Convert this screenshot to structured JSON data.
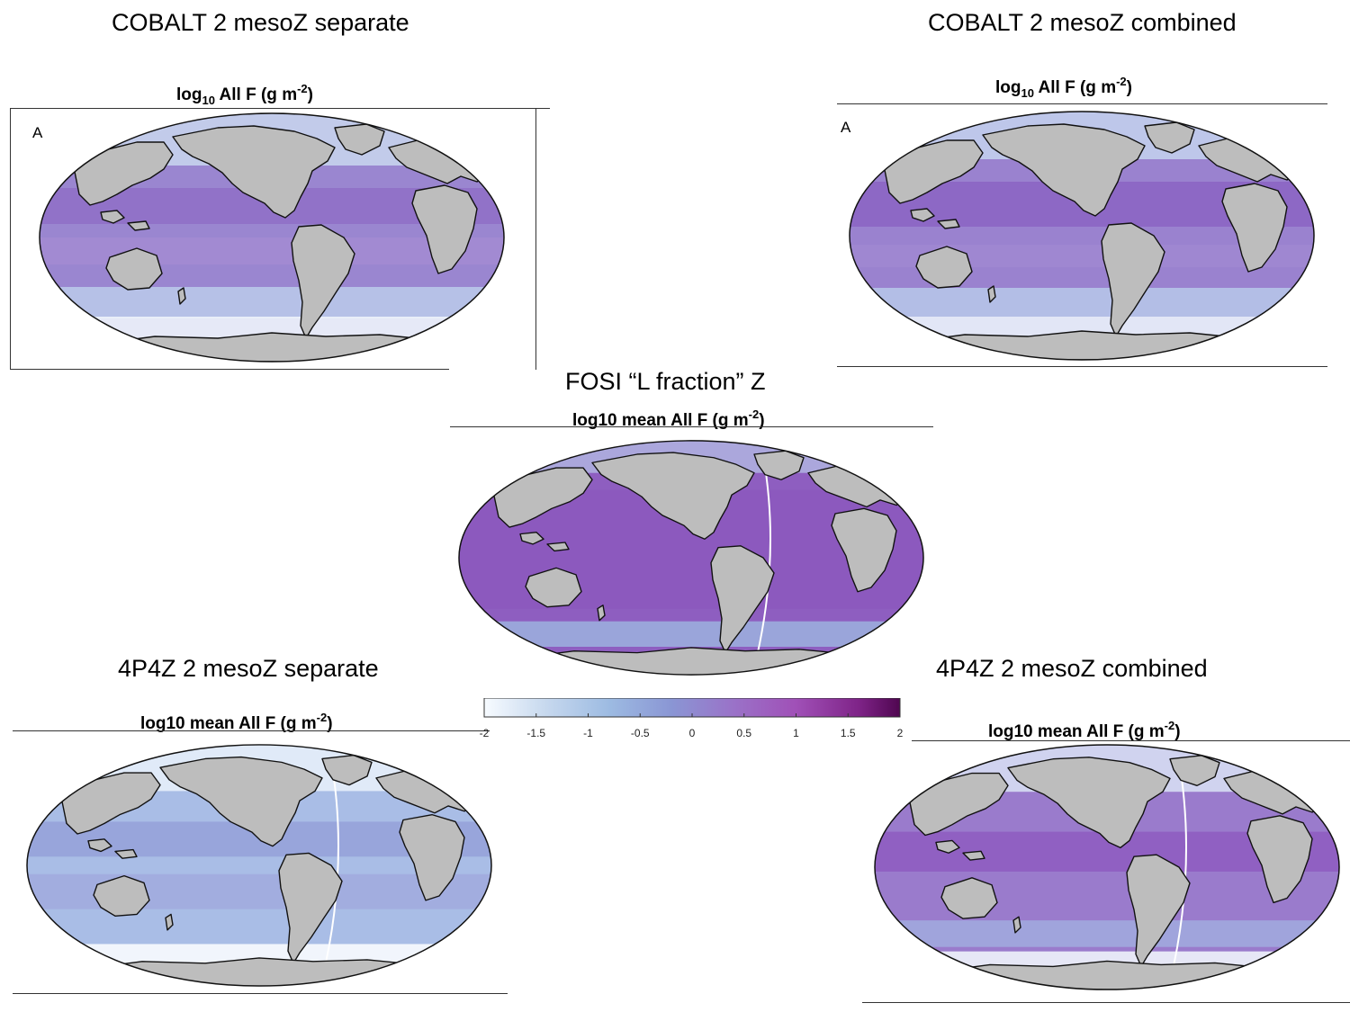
{
  "headings": {
    "cobalt_separate": "COBALT 2 mesoZ separate",
    "cobalt_combined": "COBALT 2 mesoZ combined",
    "fosi": "FOSI “L fraction” Z",
    "p4z_separate": "4P4Z 2 mesoZ separate",
    "p4z_combined": "4P4Z 2 mesoZ combined"
  },
  "panel_titles": {
    "cobalt_log_prefix": "log",
    "cobalt_log_sub": "10",
    "cobalt_rest": " All F (g m",
    "exp": "-2",
    "close": ")",
    "mean_prefix": "log10 mean All F (g m"
  },
  "panel_letters": {
    "left": "A",
    "right": "A"
  },
  "colorbar": {
    "ticks": [
      "-2",
      "-1.5",
      "-1",
      "-0.5",
      "0",
      "0.5",
      "1",
      "1.5",
      "2"
    ],
    "range": [
      -2,
      2
    ],
    "colors": [
      "#f7fbff",
      "#c6d8ee",
      "#8fb0dc",
      "#8b8fd0",
      "#9b6ec6",
      "#a04fb6",
      "#8c2f99",
      "#5c0a5e"
    ]
  },
  "maps": [
    {
      "id": "cobalt-separate",
      "mean_log10": -0.2
    },
    {
      "id": "cobalt-combined",
      "mean_log10": -0.1
    },
    {
      "id": "fosi",
      "mean_log10": 0.45
    },
    {
      "id": "p4z-separate",
      "mean_log10": -0.9
    },
    {
      "id": "p4z-combined",
      "mean_log10": 0.1
    }
  ]
}
